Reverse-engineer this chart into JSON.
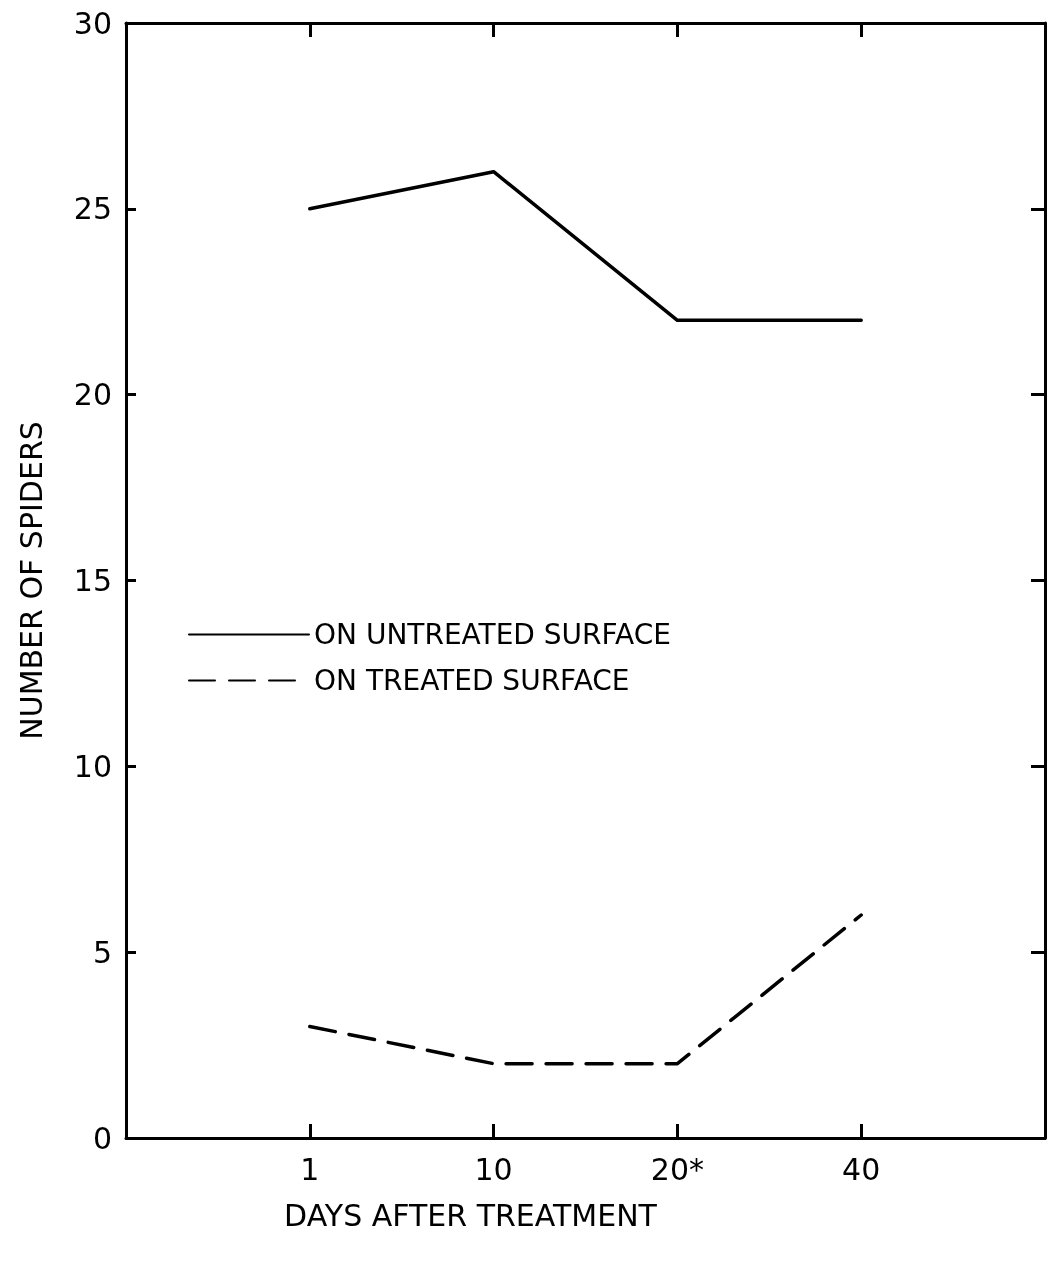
{
  "chart_data": {
    "type": "line",
    "xlabel": "DAYS AFTER TREATMENT",
    "ylabel": "NUMBER OF SPIDERS",
    "categories": [
      "1",
      "10",
      "20*",
      "40"
    ],
    "ylim": [
      0,
      30
    ],
    "yticks": [
      0,
      5,
      10,
      15,
      20,
      25,
      30
    ],
    "grid": false,
    "legend": "left",
    "marker": "none",
    "series": [
      {
        "name": "ON UNTREATED SURFACE",
        "color": "#000000",
        "line_style": "solid",
        "values": [
          25,
          26,
          22,
          22
        ]
      },
      {
        "name": "ON TREATED SURFACE",
        "color": "#000000",
        "line_style": "dashed",
        "values": [
          3,
          2,
          2,
          6
        ]
      }
    ]
  }
}
